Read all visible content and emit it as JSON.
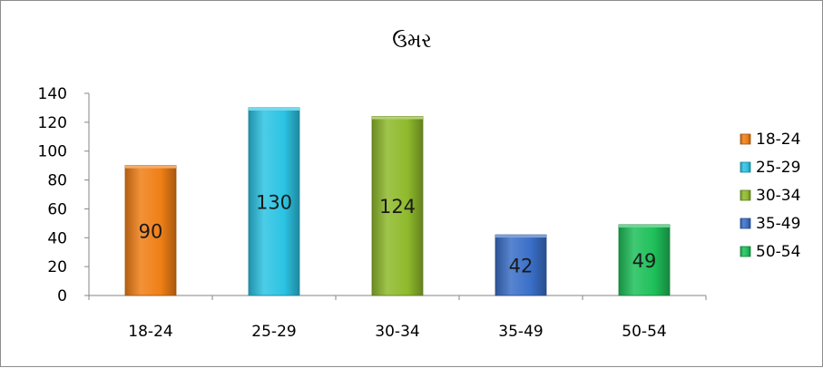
{
  "chart_data": {
    "type": "bar",
    "title": "ઉમર",
    "categories": [
      "18-24",
      "25-29",
      "30-34",
      "35-49",
      "50-54"
    ],
    "values": [
      90,
      130,
      124,
      42,
      49
    ],
    "colors": [
      "#f07f16",
      "#2cc3e3",
      "#8fba2c",
      "#3a6fc8",
      "#1ec05a"
    ],
    "xlabel": "",
    "ylabel": "",
    "ylim": [
      0,
      140
    ],
    "yticks": [
      0,
      20,
      40,
      60,
      80,
      100,
      120,
      140
    ],
    "grid": false,
    "legend": {
      "position": "right",
      "entries": [
        "18-24",
        "25-29",
        "30-34",
        "35-49",
        "50-54"
      ]
    },
    "data_labels": [
      "",
      "130",
      "124",
      "42",
      "49"
    ],
    "data_labels_first": "90"
  }
}
